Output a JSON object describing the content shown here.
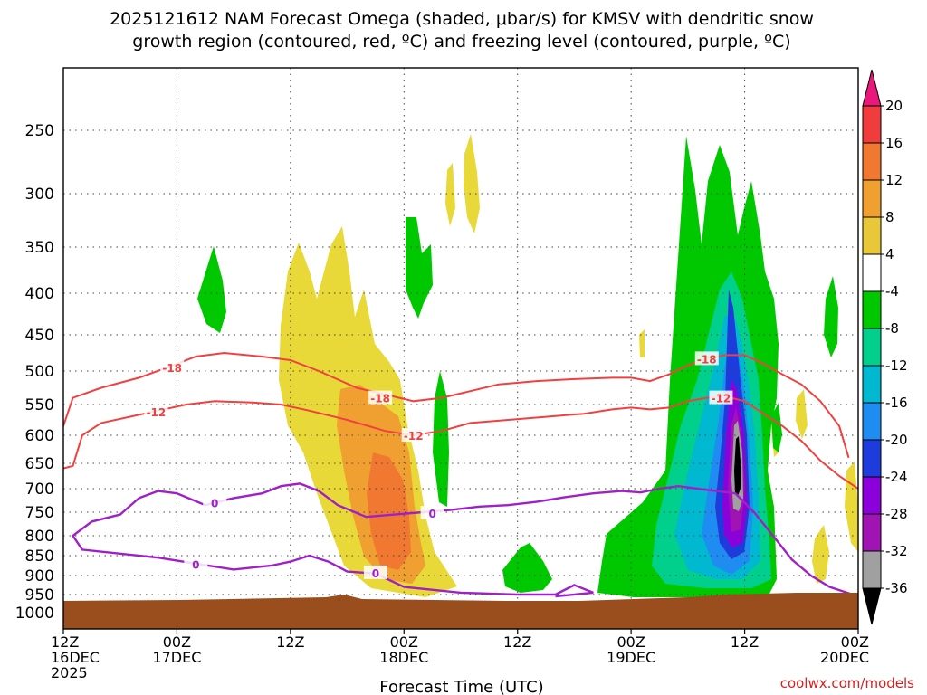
{
  "chart_data": {
    "type": "time-height omega cross-section",
    "title_lines": [
      "2025121612 NAM Forecast Omega (shaded, μbar/s) for KMSV with dendritic snow",
      "growth region (contoured, red, ºC) and freezing level (contoured, purple, ºC)"
    ],
    "xlabel": "Forecast Time (UTC)",
    "x_ticks": [
      {
        "hour": 0,
        "lines": [
          "12Z",
          "16DEC",
          "2025"
        ]
      },
      {
        "hour": 12,
        "lines": [
          "00Z",
          "17DEC"
        ]
      },
      {
        "hour": 24,
        "lines": [
          "12Z"
        ]
      },
      {
        "hour": 36,
        "lines": [
          "00Z",
          "18DEC"
        ]
      },
      {
        "hour": 48,
        "lines": [
          "12Z"
        ]
      },
      {
        "hour": 60,
        "lines": [
          "00Z",
          "19DEC"
        ]
      },
      {
        "hour": 72,
        "lines": [
          "12Z"
        ]
      },
      {
        "hour": 84,
        "lines": [
          "00Z",
          "20DEC"
        ]
      }
    ],
    "x_range_hours": [
      0,
      84
    ],
    "y_axis": "pressure (mb)",
    "y_ticks": [
      250,
      300,
      350,
      400,
      450,
      500,
      550,
      600,
      650,
      700,
      750,
      800,
      850,
      900,
      950,
      1000
    ],
    "colorbar": {
      "labels": [
        "20",
        "16",
        "12",
        "8",
        "4",
        "-4",
        "-8",
        "-12",
        "-16",
        "-20",
        "-24",
        "-28",
        "-32",
        "-36"
      ],
      "bins": [
        {
          "range": ">20",
          "color": "#e8197a"
        },
        {
          "range": "16 to 20",
          "color": "#f03c3c"
        },
        {
          "range": "12 to 16",
          "color": "#f07830"
        },
        {
          "range": "8 to 12",
          "color": "#f0a030"
        },
        {
          "range": "4 to 8",
          "color": "#e8c838"
        },
        {
          "range": "4 to -4",
          "color": "#ffffff"
        },
        {
          "range": "-4 to -8",
          "color": "#00c800"
        },
        {
          "range": "-8 to -12",
          "color": "#00d08c"
        },
        {
          "range": "-12 to -16",
          "color": "#00b8d0"
        },
        {
          "range": "-16 to -20",
          "color": "#1e8cf0"
        },
        {
          "range": "-20 to -24",
          "color": "#1e3cdc"
        },
        {
          "range": "-24 to -28",
          "color": "#8c00dc"
        },
        {
          "range": "-28 to -32",
          "color": "#a014b4"
        },
        {
          "range": "-32 to -36",
          "color": "#a0a0a0"
        },
        {
          "range": "<-36",
          "color": "#000000"
        }
      ]
    },
    "contours": {
      "dgz_label_minus18": "-18",
      "dgz_label_minus12": "-12",
      "freezing_label": "0",
      "dgz_color": "#f04040",
      "freezing_color": "#a020c8",
      "minus18_top": [
        [
          0,
          585
        ],
        [
          1,
          540
        ],
        [
          4,
          525
        ],
        [
          8,
          510
        ],
        [
          11,
          495
        ],
        [
          14,
          480
        ],
        [
          17,
          475
        ],
        [
          21,
          480
        ],
        [
          24,
          485
        ],
        [
          27,
          500
        ],
        [
          31,
          525
        ],
        [
          34,
          535
        ],
        [
          37,
          545
        ],
        [
          40,
          540
        ],
        [
          43,
          530
        ],
        [
          46,
          520
        ],
        [
          50,
          515
        ],
        [
          54,
          512
        ],
        [
          58,
          510
        ],
        [
          60,
          510
        ],
        [
          62,
          515
        ],
        [
          64,
          505
        ],
        [
          66,
          492
        ],
        [
          68,
          483
        ],
        [
          70,
          478
        ],
        [
          72,
          478
        ],
        [
          74,
          490
        ],
        [
          76,
          505
        ],
        [
          78,
          520
        ],
        [
          80,
          545
        ],
        [
          82,
          585
        ],
        [
          83,
          640
        ]
      ],
      "minus12_bottom": [
        [
          0,
          660
        ],
        [
          1,
          655
        ],
        [
          2,
          600
        ],
        [
          4,
          580
        ],
        [
          7,
          570
        ],
        [
          10,
          560
        ],
        [
          13,
          550
        ],
        [
          16,
          545
        ],
        [
          20,
          547
        ],
        [
          23,
          550
        ],
        [
          26,
          560
        ],
        [
          30,
          575
        ],
        [
          34,
          593
        ],
        [
          37,
          600
        ],
        [
          40,
          593
        ],
        [
          43,
          580
        ],
        [
          47,
          575
        ],
        [
          51,
          570
        ],
        [
          55,
          565
        ],
        [
          58,
          558
        ],
        [
          60,
          555
        ],
        [
          62,
          558
        ],
        [
          64,
          555
        ],
        [
          66,
          545
        ],
        [
          68,
          540
        ],
        [
          70,
          538
        ],
        [
          72,
          545
        ],
        [
          74,
          565
        ],
        [
          76,
          585
        ],
        [
          78,
          610
        ],
        [
          80,
          645
        ],
        [
          82,
          675
        ],
        [
          84,
          700
        ]
      ],
      "freezing_upper": [
        [
          8,
          720
        ],
        [
          10,
          705
        ],
        [
          12,
          710
        ],
        [
          15,
          735
        ],
        [
          18,
          720
        ],
        [
          21,
          710
        ],
        [
          23,
          695
        ],
        [
          25,
          690
        ],
        [
          27,
          705
        ],
        [
          29,
          735
        ],
        [
          32,
          760
        ],
        [
          35,
          755
        ],
        [
          38,
          750
        ],
        [
          41,
          745
        ],
        [
          44,
          738
        ],
        [
          47,
          735
        ],
        [
          50,
          728
        ],
        [
          53,
          718
        ],
        [
          56,
          710
        ],
        [
          59,
          705
        ],
        [
          61,
          708
        ],
        [
          63,
          700
        ],
        [
          65,
          695
        ],
        [
          67,
          700
        ],
        [
          69,
          705
        ],
        [
          71,
          710
        ],
        [
          73,
          750
        ],
        [
          75,
          800
        ],
        [
          77,
          860
        ],
        [
          79,
          900
        ],
        [
          81,
          930
        ],
        [
          84,
          955
        ]
      ],
      "freezing_lower": [
        [
          8,
          720
        ],
        [
          6,
          755
        ],
        [
          3,
          770
        ],
        [
          1,
          800
        ],
        [
          2,
          835
        ],
        [
          6,
          845
        ],
        [
          10,
          855
        ],
        [
          14,
          870
        ],
        [
          18,
          885
        ],
        [
          22,
          875
        ],
        [
          24,
          865
        ],
        [
          26,
          850
        ],
        [
          28,
          865
        ],
        [
          30,
          890
        ],
        [
          33,
          895
        ],
        [
          36,
          930
        ],
        [
          42,
          945
        ],
        [
          48,
          950
        ],
        [
          52,
          950
        ],
        [
          54,
          925
        ],
        [
          56,
          945
        ],
        [
          52,
          955
        ]
      ]
    },
    "footer_left": "2025",
    "attribution": "coolwx.com/models"
  }
}
